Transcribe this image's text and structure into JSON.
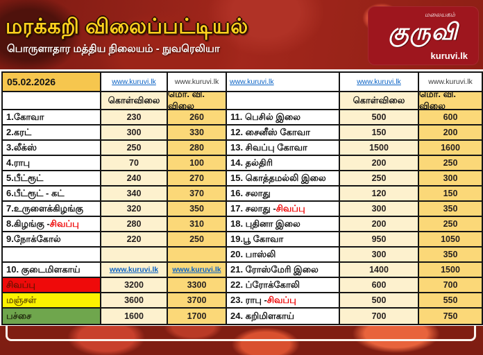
{
  "header": {
    "title": "மரக்கறி விலைப்பட்டியல்",
    "subtitle": "பொருளாதார மத்திய நிலையம் - நுவரெலியா",
    "logo": {
      "tagline": "மலையகம்",
      "name": "குருவி",
      "site": "kuruvi.lk"
    }
  },
  "table": {
    "date": "05.02.2026",
    "links": {
      "blue": "www.kuruvi.lk",
      "plain": "www.kuruvi.lk"
    },
    "columns": {
      "buy": "கொள்விலை",
      "retail": "மொ. வி. விலை"
    },
    "left_rows": [
      {
        "name": "1.கோவா",
        "buy": "230",
        "retail": "260"
      },
      {
        "name": "2.கரட்",
        "buy": "300",
        "retail": "330"
      },
      {
        "name": "3.லீக்ஸ்",
        "buy": "250",
        "retail": "280"
      },
      {
        "name": "4.ராபு",
        "buy": "70",
        "retail": "100"
      },
      {
        "name": "5.பீட்ரூட்",
        "buy": "240",
        "retail": "270"
      },
      {
        "name": "6.பீட்ரூட் - கட்",
        "buy": "340",
        "retail": "370"
      },
      {
        "name": "7.உருளைக்கிழங்கு",
        "buy": "320",
        "retail": "350"
      },
      {
        "name": "8.கிழங்கு - ",
        "name_red": "சிவப்பு",
        "buy": "280",
        "retail": "310"
      },
      {
        "name": "9.நோக்கோல்",
        "buy": "220",
        "retail": "250"
      },
      {
        "name": "",
        "buy": "",
        "retail": ""
      },
      {
        "name": "10. குடைமிளகாய்",
        "is_link": true,
        "buy": "www.kuruvi.lk",
        "retail": "www.kuruvi.lk"
      },
      {
        "name": "சிவப்பு",
        "name_bg": "red",
        "buy": "3200",
        "retail": "3300"
      },
      {
        "name": "மஞ்சள்",
        "name_bg": "yellow",
        "buy": "3600",
        "retail": "3700"
      },
      {
        "name": "பச்சை",
        "name_bg": "green",
        "buy": "1600",
        "retail": "1700"
      }
    ],
    "right_rows": [
      {
        "name": "11. பெசில் இலை",
        "buy": "500",
        "retail": "600"
      },
      {
        "name": "12. சைனீஸ் கோவா",
        "buy": "150",
        "retail": "200"
      },
      {
        "name": "13. சிவப்பு கோவா",
        "buy": "1500",
        "retail": "1600"
      },
      {
        "name": "14. தல்திரி",
        "buy": "200",
        "retail": "250"
      },
      {
        "name": "15. கொத்தமல்லி இலை",
        "buy": "250",
        "retail": "300"
      },
      {
        "name": "16. சலாது",
        "buy": "120",
        "retail": "150"
      },
      {
        "name": "17. சலாது - ",
        "name_red": "சிவப்பு",
        "buy": "300",
        "retail": "350"
      },
      {
        "name": "18. புதினா இலை",
        "buy": "200",
        "retail": "250"
      },
      {
        "name": "19.பூ கோவா",
        "buy": "950",
        "retail": "1050"
      },
      {
        "name": "20. பாஸ்லி",
        "buy": "300",
        "retail": "350"
      },
      {
        "name": "21. ரோஸ்மேரி இலை",
        "buy": "1400",
        "retail": "1500"
      },
      {
        "name": "22. ப்ரோக்கோலி",
        "buy": "600",
        "retail": "700"
      },
      {
        "name": "23. ராபு - ",
        "name_red": "சிவப்பு",
        "buy": "500",
        "retail": "550"
      },
      {
        "name": "24. கறிமிளகாய்",
        "buy": "700",
        "retail": "750"
      }
    ]
  },
  "colors": {
    "banner_red": "#8e1f15",
    "title_yellow": "#ffd21e",
    "logo_red": "#9e161e",
    "date_gold": "#f6c64e",
    "buy_cream": "#fdf1ce",
    "retail_gold": "#fbd878",
    "row_red": "#ef0a0a",
    "row_yellow": "#fcf200",
    "row_green": "#6fa64d",
    "link_blue": "#0b63c5",
    "highlight_red": "#ee0000",
    "border_black": "#141414"
  }
}
